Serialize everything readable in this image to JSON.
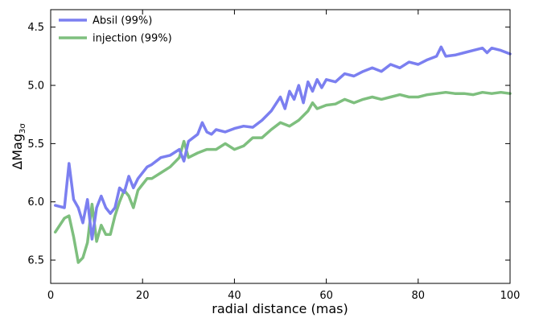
{
  "chart_data": {
    "type": "line",
    "xlabel": "radial distance (mas)",
    "ylabel_main": "ΔMag",
    "ylabel_sub": "3σ",
    "xlim": [
      0,
      100
    ],
    "ylim": [
      6.7,
      4.35
    ],
    "y_inverted": true,
    "xticks": [
      0,
      20,
      40,
      60,
      80,
      100
    ],
    "yticks": [
      4.5,
      5.0,
      5.5,
      6.0,
      6.5
    ],
    "ytick_labels": [
      "4.5",
      "5.0",
      "5.5",
      "6.0",
      "6.5"
    ],
    "grid": false,
    "legend_position": "top-left",
    "series": [
      {
        "name": "Absil (99%)",
        "color": "#7b7ff0",
        "x": [
          1,
          3,
          4,
          5,
          6,
          7,
          8,
          9,
          10,
          11,
          12,
          13,
          14,
          15,
          16,
          17,
          18,
          19,
          20,
          21,
          22,
          24,
          26,
          28,
          29,
          30,
          32,
          33,
          34,
          35,
          36,
          38,
          40,
          42,
          44,
          46,
          48,
          50,
          51,
          52,
          53,
          54,
          55,
          56,
          57,
          58,
          59,
          60,
          62,
          64,
          66,
          68,
          70,
          72,
          74,
          76,
          78,
          80,
          82,
          84,
          85,
          86,
          88,
          90,
          92,
          94,
          95,
          96,
          98,
          100
        ],
        "y": [
          6.03,
          6.05,
          5.67,
          5.98,
          6.05,
          6.18,
          5.98,
          6.32,
          6.05,
          5.95,
          6.05,
          6.1,
          6.05,
          5.88,
          5.92,
          5.78,
          5.88,
          5.8,
          5.75,
          5.7,
          5.68,
          5.62,
          5.6,
          5.55,
          5.65,
          5.48,
          5.42,
          5.32,
          5.4,
          5.42,
          5.38,
          5.4,
          5.37,
          5.35,
          5.36,
          5.3,
          5.22,
          5.1,
          5.2,
          5.05,
          5.12,
          5.0,
          5.15,
          4.97,
          5.05,
          4.95,
          5.02,
          4.95,
          4.97,
          4.9,
          4.92,
          4.88,
          4.85,
          4.88,
          4.82,
          4.85,
          4.8,
          4.82,
          4.78,
          4.75,
          4.67,
          4.75,
          4.74,
          4.72,
          4.7,
          4.68,
          4.72,
          4.68,
          4.7,
          4.73
        ]
      },
      {
        "name": "injection (99%)",
        "color": "#7ebf7e",
        "x": [
          1,
          3,
          4,
          5,
          6,
          7,
          8,
          9,
          10,
          11,
          12,
          13,
          14,
          15,
          16,
          17,
          18,
          19,
          20,
          21,
          22,
          24,
          26,
          28,
          29,
          30,
          32,
          34,
          36,
          38,
          40,
          42,
          44,
          46,
          48,
          50,
          52,
          54,
          56,
          57,
          58,
          60,
          62,
          64,
          66,
          68,
          70,
          72,
          74,
          76,
          78,
          80,
          82,
          84,
          86,
          88,
          90,
          92,
          94,
          96,
          98,
          100
        ],
        "y": [
          6.26,
          6.14,
          6.12,
          6.3,
          6.52,
          6.48,
          6.35,
          6.02,
          6.34,
          6.2,
          6.28,
          6.28,
          6.12,
          6.0,
          5.9,
          5.95,
          6.05,
          5.9,
          5.85,
          5.8,
          5.8,
          5.75,
          5.7,
          5.62,
          5.48,
          5.62,
          5.58,
          5.55,
          5.55,
          5.5,
          5.55,
          5.52,
          5.45,
          5.45,
          5.38,
          5.32,
          5.35,
          5.3,
          5.22,
          5.15,
          5.2,
          5.17,
          5.16,
          5.12,
          5.15,
          5.12,
          5.1,
          5.12,
          5.1,
          5.08,
          5.1,
          5.1,
          5.08,
          5.07,
          5.06,
          5.07,
          5.07,
          5.08,
          5.06,
          5.07,
          5.06,
          5.07
        ]
      }
    ]
  }
}
